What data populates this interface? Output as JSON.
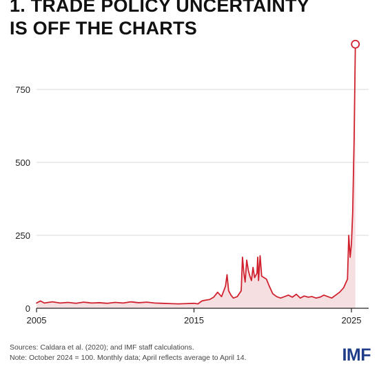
{
  "header": {
    "title_line1": "1. TRADE POLICY UNCERTAINTY",
    "title_line2": "IS OFF THE CHARTS"
  },
  "footer": {
    "sources": "Sources: Caldara et al. (2020); and IMF staff calculations.",
    "note": "Note: October 2024 = 100. Monthly data; April reflects average to April 14."
  },
  "logo": {
    "text": "IMF"
  },
  "colors": {
    "line": "#d0212e",
    "fill": "#f6dfe1",
    "grid": "#d9d9d9",
    "axis": "#222222"
  },
  "chart_data": {
    "type": "area",
    "title": "1. TRADE POLICY UNCERTAINTY IS OFF THE CHARTS",
    "xlabel": "",
    "ylabel": "",
    "xlim": [
      2005,
      2025.5
    ],
    "ylim": [
      0,
      950
    ],
    "xticks": [
      2005,
      2015,
      2025
    ],
    "yticks": [
      0,
      250,
      500,
      750
    ],
    "grid": true,
    "series": [
      {
        "x": [
          2005,
          2005.25,
          2005.5,
          2005.75,
          2006,
          2006.5,
          2007,
          2007.5,
          2008,
          2008.5,
          2009,
          2009.5,
          2010,
          2010.5,
          2011,
          2011.5,
          2012,
          2012.5,
          2013,
          2013.5,
          2014,
          2014.5,
          2015,
          2015.25,
          2015.5,
          2015.75,
          2016,
          2016.25,
          2016.5,
          2016.75,
          2017,
          2017.1,
          2017.2,
          2017.35,
          2017.5,
          2017.75,
          2018,
          2018.08,
          2018.17,
          2018.25,
          2018.35,
          2018.45,
          2018.55,
          2018.65,
          2018.75,
          2018.85,
          2019,
          2019.05,
          2019.1,
          2019.2,
          2019.3,
          2019.45,
          2019.6,
          2019.75,
          2020,
          2020.25,
          2020.5,
          2020.75,
          2021,
          2021.25,
          2021.5,
          2021.75,
          2022,
          2022.25,
          2022.5,
          2022.75,
          2023,
          2023.25,
          2023.5,
          2023.75,
          2024,
          2024.25,
          2024.5,
          2024.75,
          2024.83,
          2024.92,
          2025,
          2025.08,
          2025.17,
          2025.25
        ],
        "values": [
          18,
          25,
          18,
          20,
          22,
          18,
          20,
          17,
          21,
          18,
          19,
          17,
          20,
          18,
          22,
          19,
          21,
          18,
          17,
          16,
          15,
          16,
          17,
          15,
          25,
          28,
          30,
          38,
          55,
          40,
          75,
          115,
          60,
          45,
          35,
          40,
          60,
          175,
          120,
          90,
          165,
          130,
          110,
          95,
          140,
          105,
          120,
          175,
          95,
          180,
          110,
          105,
          100,
          80,
          50,
          40,
          35,
          40,
          45,
          38,
          48,
          35,
          42,
          38,
          40,
          35,
          38,
          45,
          40,
          35,
          45,
          55,
          70,
          100,
          250,
          175,
          220,
          330,
          580,
          905
        ]
      }
    ],
    "annotation": {
      "type": "endpoint-circle",
      "x": 2025.25,
      "y": 905
    }
  }
}
